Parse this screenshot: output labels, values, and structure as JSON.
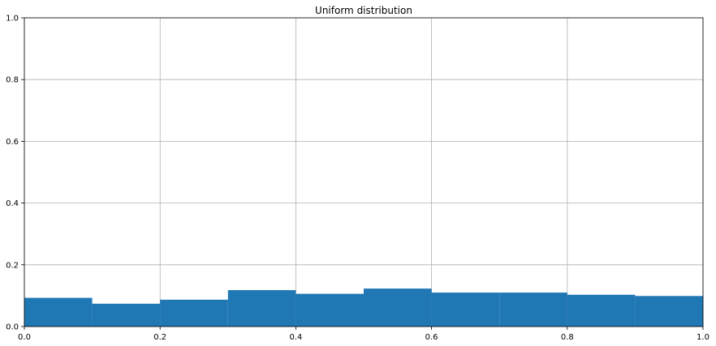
{
  "chart_data": {
    "type": "bar",
    "title": "Uniform distribution",
    "xlabel": "",
    "ylabel": "",
    "xlim": [
      0,
      1
    ],
    "ylim": [
      0,
      1
    ],
    "xticks": [
      "0.0",
      "0.2",
      "0.4",
      "0.6",
      "0.8",
      "1.0"
    ],
    "yticks": [
      "0.0",
      "0.2",
      "0.4",
      "0.6",
      "0.8",
      "1.0"
    ],
    "grid": true,
    "bins": [
      {
        "x0": 0.0,
        "x1": 0.1,
        "value": 0.093
      },
      {
        "x0": 0.1,
        "x1": 0.2,
        "value": 0.074
      },
      {
        "x0": 0.2,
        "x1": 0.3,
        "value": 0.087
      },
      {
        "x0": 0.3,
        "x1": 0.4,
        "value": 0.118
      },
      {
        "x0": 0.4,
        "x1": 0.5,
        "value": 0.106
      },
      {
        "x0": 0.5,
        "x1": 0.6,
        "value": 0.123
      },
      {
        "x0": 0.6,
        "x1": 0.7,
        "value": 0.11
      },
      {
        "x0": 0.7,
        "x1": 0.8,
        "value": 0.11
      },
      {
        "x0": 0.8,
        "x1": 0.9,
        "value": 0.103
      },
      {
        "x0": 0.9,
        "x1": 1.0,
        "value": 0.099
      }
    ],
    "bar_color": "#1f77b4",
    "grid_color": "#b0b0b0"
  }
}
